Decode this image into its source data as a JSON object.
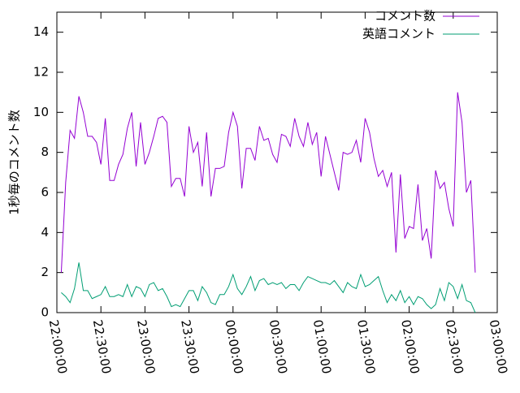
{
  "chart_data": {
    "type": "line",
    "y_label": "1秒毎のコメント数",
    "xlim": [
      "22:00:00",
      "03:00:00"
    ],
    "xticks": [
      "22:00:00",
      "22:30:00",
      "23:00:00",
      "23:30:00",
      "00:00:00",
      "00:30:00",
      "01:00:00",
      "01:30:00",
      "02:00:00",
      "02:30:00",
      "03:00:00"
    ],
    "ylim": [
      0,
      15
    ],
    "yticks": [
      0,
      2,
      4,
      6,
      8,
      10,
      12,
      14
    ],
    "legend": "top-right",
    "x": [
      "22:03:00",
      "22:06:00",
      "22:09:00",
      "22:12:00",
      "22:15:00",
      "22:18:00",
      "22:21:00",
      "22:24:00",
      "22:27:00",
      "22:30:00",
      "22:33:00",
      "22:36:00",
      "22:39:00",
      "22:42:00",
      "22:45:00",
      "22:48:00",
      "22:51:00",
      "22:54:00",
      "22:57:00",
      "23:00:00",
      "23:03:00",
      "23:06:00",
      "23:09:00",
      "23:12:00",
      "23:15:00",
      "23:18:00",
      "23:21:00",
      "23:24:00",
      "23:27:00",
      "23:30:00",
      "23:33:00",
      "23:36:00",
      "23:39:00",
      "23:42:00",
      "23:45:00",
      "23:48:00",
      "23:51:00",
      "23:54:00",
      "23:57:00",
      "00:00:00",
      "00:03:00",
      "00:06:00",
      "00:09:00",
      "00:12:00",
      "00:15:00",
      "00:18:00",
      "00:21:00",
      "00:24:00",
      "00:27:00",
      "00:30:00",
      "00:33:00",
      "00:36:00",
      "00:39:00",
      "00:42:00",
      "00:45:00",
      "00:48:00",
      "00:51:00",
      "00:54:00",
      "00:57:00",
      "01:00:00",
      "01:03:00",
      "01:06:00",
      "01:09:00",
      "01:12:00",
      "01:15:00",
      "01:18:00",
      "01:21:00",
      "01:24:00",
      "01:27:00",
      "01:30:00",
      "01:33:00",
      "01:36:00",
      "01:39:00",
      "01:42:00",
      "01:45:00",
      "01:48:00",
      "01:51:00",
      "01:54:00",
      "01:57:00",
      "02:00:00",
      "02:03:00",
      "02:06:00",
      "02:09:00",
      "02:12:00",
      "02:15:00",
      "02:18:00",
      "02:21:00",
      "02:24:00",
      "02:27:00",
      "02:30:00",
      "02:33:00",
      "02:36:00",
      "02:39:00",
      "02:42:00",
      "02:45:00"
    ],
    "series": [
      {
        "name": "コメント数",
        "color": "#9400d3",
        "values": [
          2.0,
          6.5,
          9.1,
          8.7,
          10.8,
          10.0,
          8.8,
          8.8,
          8.5,
          7.4,
          9.7,
          6.6,
          6.6,
          7.4,
          7.9,
          9.2,
          10.0,
          7.3,
          9.5,
          7.4,
          8.0,
          8.8,
          9.7,
          9.8,
          9.5,
          6.3,
          6.7,
          6.7,
          5.8,
          9.3,
          8.0,
          8.5,
          6.3,
          9.0,
          5.8,
          7.2,
          7.2,
          7.3,
          9.0,
          10.0,
          9.3,
          6.2,
          8.2,
          8.2,
          7.6,
          9.3,
          8.6,
          8.7,
          7.9,
          7.5,
          8.9,
          8.8,
          8.3,
          9.7,
          8.8,
          8.3,
          9.5,
          8.4,
          9.0,
          6.8,
          8.8,
          7.9,
          7.0,
          6.1,
          8.0,
          7.9,
          8.0,
          8.6,
          7.5,
          9.7,
          9.0,
          7.7,
          6.8,
          7.1,
          6.3,
          7.0,
          3.0,
          6.9,
          3.7,
          4.3,
          4.2,
          6.4,
          3.6,
          4.2,
          2.7,
          7.1,
          6.2,
          6.5,
          5.2,
          4.3,
          11.0,
          9.5,
          6.0,
          6.6,
          2.0
        ]
      },
      {
        "name": "英語コメント",
        "color": "#009e73",
        "values": [
          1.0,
          0.8,
          0.5,
          1.2,
          2.5,
          1.1,
          1.1,
          0.7,
          0.8,
          0.9,
          1.3,
          0.8,
          0.8,
          0.9,
          0.8,
          1.4,
          0.8,
          1.3,
          1.2,
          0.8,
          1.4,
          1.5,
          1.1,
          1.2,
          0.8,
          0.3,
          0.4,
          0.3,
          0.7,
          1.1,
          1.1,
          0.6,
          1.3,
          1.0,
          0.5,
          0.4,
          0.9,
          0.9,
          1.3,
          1.9,
          1.2,
          0.9,
          1.3,
          1.8,
          1.1,
          1.6,
          1.7,
          1.4,
          1.5,
          1.4,
          1.5,
          1.2,
          1.4,
          1.4,
          1.1,
          1.5,
          1.8,
          1.7,
          1.6,
          1.5,
          1.5,
          1.4,
          1.6,
          1.3,
          1.0,
          1.5,
          1.3,
          1.2,
          1.9,
          1.3,
          1.4,
          1.6,
          1.8,
          1.1,
          0.5,
          0.9,
          0.6,
          1.1,
          0.5,
          0.8,
          0.4,
          0.8,
          0.7,
          0.4,
          0.2,
          0.4,
          1.2,
          0.6,
          1.5,
          1.3,
          0.7,
          1.4,
          0.6,
          0.5,
          0.0
        ]
      }
    ]
  }
}
